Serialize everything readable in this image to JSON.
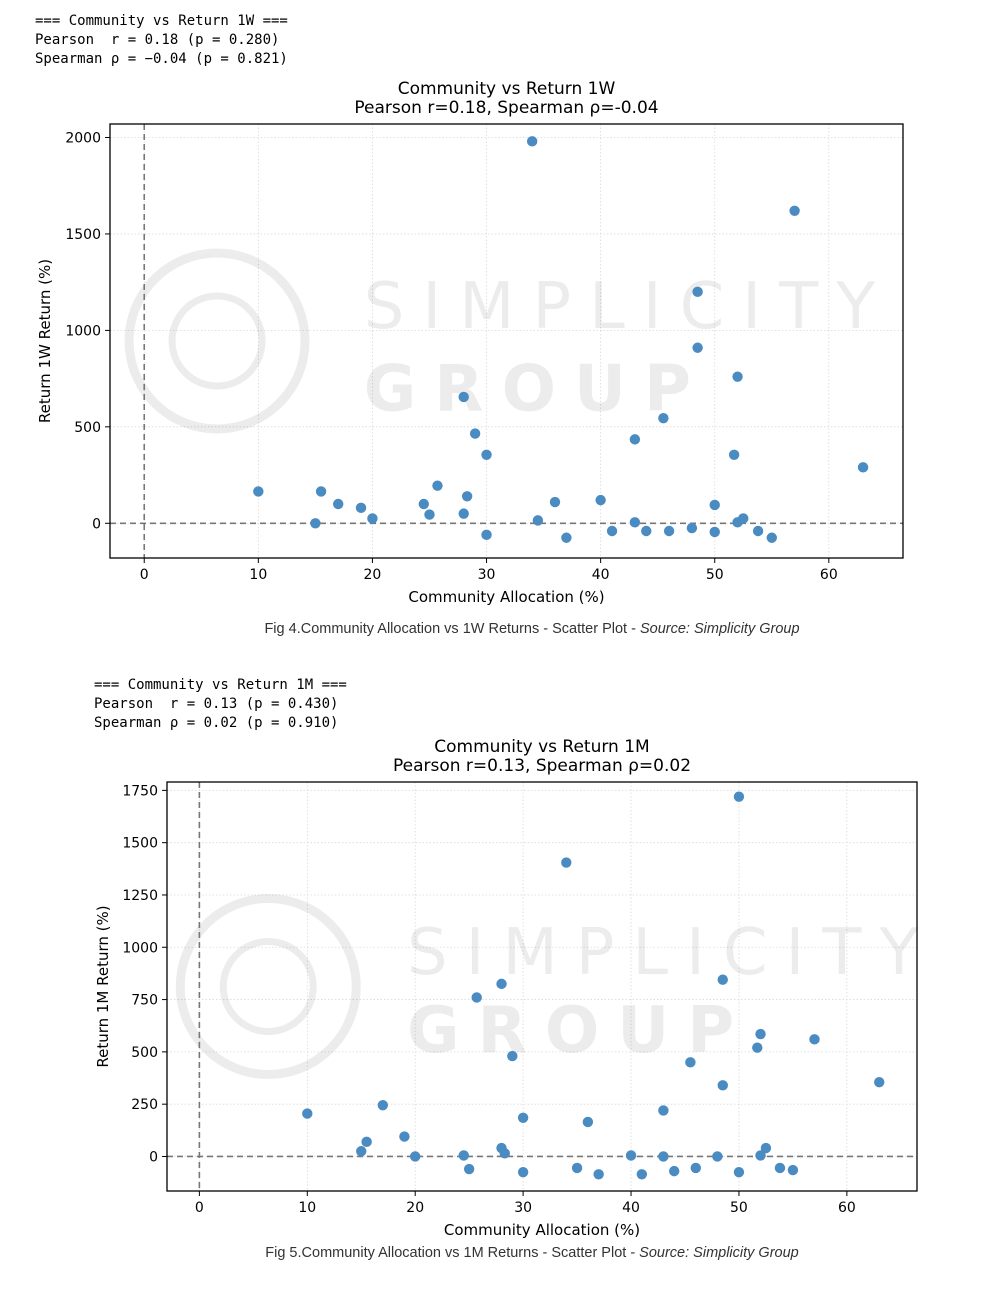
{
  "figures": [
    {
      "stats_lines": [
        "=== Community vs Return 1W ===",
        "Pearson  r = 0.18 (p = 0.280)",
        "Spearman ρ = −0.04 (p = 0.821)"
      ],
      "caption": {
        "text": "Fig 4.Community Allocation vs 1W Returns - Scatter Plot - ",
        "source": "Source: Simplicity Group"
      }
    },
    {
      "stats_lines": [
        "=== Community vs Return 1M ===",
        "Pearson  r = 0.13 (p = 0.430)",
        "Spearman ρ = 0.02 (p = 0.910)"
      ],
      "caption": {
        "text": "Fig 5.Community Allocation vs 1M Returns - Scatter Plot - ",
        "source": "Source: Simplicity Group"
      }
    }
  ],
  "watermark": {
    "line1": "SIMPLICITY",
    "line2": "GROUP"
  },
  "colors": {
    "point": "#4a8bc2",
    "axis": "#000000",
    "grid": "#d9d9d9",
    "ref_line": "#777777"
  },
  "chart_data": [
    {
      "type": "scatter",
      "title": "Community vs Return 1W",
      "subtitle": "Pearson r=0.18, Spearman ρ=-0.04",
      "xlabel": "Community Allocation (%)",
      "ylabel": "Return 1W Return (%)",
      "xlim": [
        -3,
        66.5
      ],
      "ylim": [
        -180,
        2070
      ],
      "xticks": [
        0,
        10,
        20,
        30,
        40,
        50,
        60
      ],
      "yticks": [
        0,
        500,
        1000,
        1500,
        2000
      ],
      "grid": true,
      "reference_lines": {
        "x": 0,
        "y": 0
      },
      "points": [
        [
          10,
          165
        ],
        [
          15,
          0
        ],
        [
          15.5,
          165
        ],
        [
          17,
          100
        ],
        [
          19,
          80
        ],
        [
          20,
          25
        ],
        [
          24.5,
          100
        ],
        [
          25,
          45
        ],
        [
          25.7,
          195
        ],
        [
          28,
          655
        ],
        [
          28,
          50
        ],
        [
          28.3,
          140
        ],
        [
          29,
          465
        ],
        [
          30,
          355
        ],
        [
          30,
          -60
        ],
        [
          34,
          1980
        ],
        [
          34.5,
          15
        ],
        [
          36,
          110
        ],
        [
          37,
          -75
        ],
        [
          40,
          120
        ],
        [
          41,
          -40
        ],
        [
          43,
          435
        ],
        [
          43,
          5
        ],
        [
          44,
          -40
        ],
        [
          45.5,
          545
        ],
        [
          46,
          -40
        ],
        [
          48,
          -25
        ],
        [
          48.5,
          1200
        ],
        [
          48.5,
          910
        ],
        [
          50,
          95
        ],
        [
          50,
          -45
        ],
        [
          51.7,
          355
        ],
        [
          52,
          760
        ],
        [
          52,
          5
        ],
        [
          52.5,
          25
        ],
        [
          53.8,
          -40
        ],
        [
          55,
          -75
        ],
        [
          57,
          1620
        ],
        [
          63,
          290
        ]
      ]
    },
    {
      "type": "scatter",
      "title": "Community vs Return 1M",
      "subtitle": "Pearson r=0.13, Spearman ρ=0.02",
      "xlabel": "Community Allocation (%)",
      "ylabel": "Return 1M Return (%)",
      "xlim": [
        -3,
        66.5
      ],
      "ylim": [
        -165,
        1790
      ],
      "xticks": [
        0,
        10,
        20,
        30,
        40,
        50,
        60
      ],
      "yticks": [
        0,
        250,
        500,
        750,
        1000,
        1250,
        1500,
        1750
      ],
      "grid": true,
      "reference_lines": {
        "x": 0,
        "y": 0
      },
      "points": [
        [
          10,
          205
        ],
        [
          15,
          25
        ],
        [
          15.5,
          70
        ],
        [
          17,
          245
        ],
        [
          19,
          95
        ],
        [
          20,
          0
        ],
        [
          24.5,
          5
        ],
        [
          25,
          -60
        ],
        [
          25.7,
          760
        ],
        [
          28,
          825
        ],
        [
          28,
          40
        ],
        [
          28.3,
          15
        ],
        [
          29,
          480
        ],
        [
          30,
          185
        ],
        [
          30,
          -75
        ],
        [
          34,
          1405
        ],
        [
          35,
          -55
        ],
        [
          36,
          165
        ],
        [
          37,
          -85
        ],
        [
          40,
          5
        ],
        [
          41,
          -85
        ],
        [
          43,
          220
        ],
        [
          43,
          0
        ],
        [
          44,
          -70
        ],
        [
          45.5,
          450
        ],
        [
          46,
          -55
        ],
        [
          48,
          0
        ],
        [
          48.5,
          845
        ],
        [
          48.5,
          340
        ],
        [
          50,
          1720
        ],
        [
          50,
          -75
        ],
        [
          51.7,
          520
        ],
        [
          52,
          585
        ],
        [
          52,
          5
        ],
        [
          52.5,
          40
        ],
        [
          53.8,
          -55
        ],
        [
          55,
          -65
        ],
        [
          57,
          560
        ],
        [
          63,
          355
        ]
      ]
    }
  ]
}
